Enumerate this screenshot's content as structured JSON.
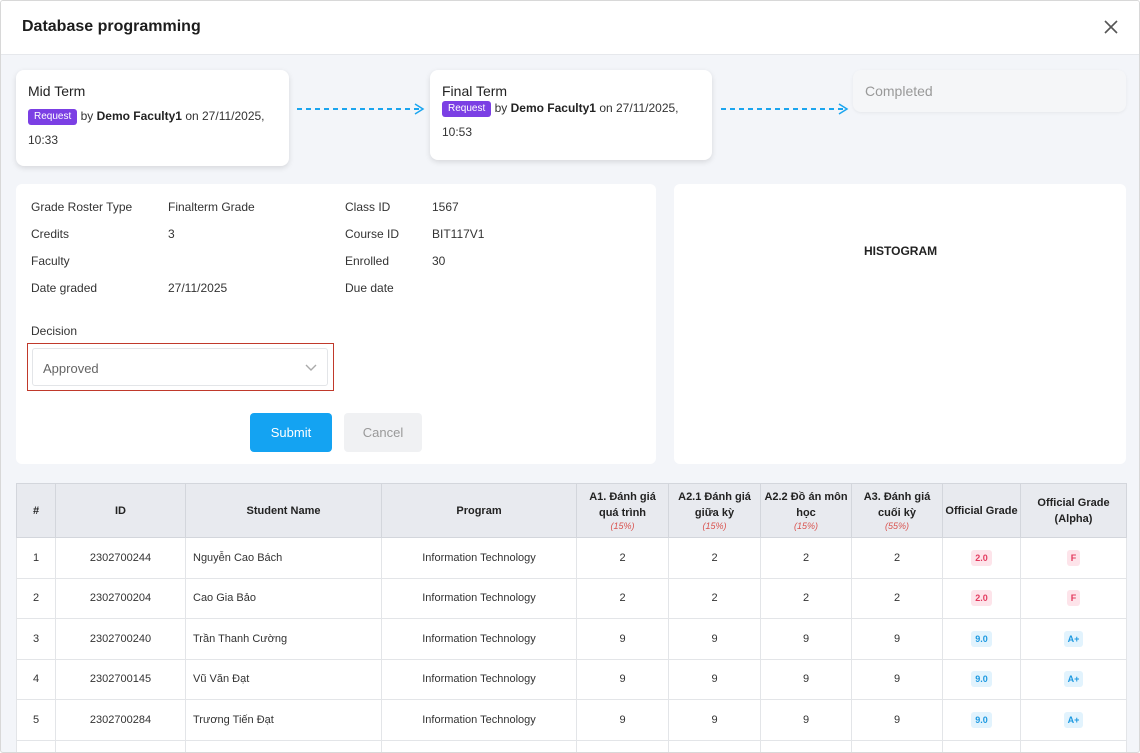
{
  "modal": {
    "title": "Database programming"
  },
  "workflow": {
    "mid": {
      "title": "Mid Term",
      "badge": "Request",
      "by": "by",
      "user": "Demo Faculty1",
      "on": "on 27/11/2025,",
      "time": "10:33"
    },
    "final": {
      "title": "Final Term",
      "badge": "Request",
      "by": "by",
      "user": "Demo Faculty1",
      "on": "on 27/11/2025,",
      "time": "10:53"
    },
    "completed": {
      "title": "Completed"
    }
  },
  "info": {
    "grade_roster_type": {
      "label": "Grade Roster Type",
      "value": "Finalterm Grade"
    },
    "credits": {
      "label": "Credits",
      "value": "3"
    },
    "faculty": {
      "label": "Faculty",
      "value": ""
    },
    "date_graded": {
      "label": "Date graded",
      "value": "27/11/2025"
    },
    "class_id": {
      "label": "Class ID",
      "value": "1567"
    },
    "course_id": {
      "label": "Course ID",
      "value": "BIT117V1"
    },
    "enrolled": {
      "label": "Enrolled",
      "value": "30"
    },
    "due_date": {
      "label": "Due date",
      "value": ""
    }
  },
  "decision": {
    "label": "Decision",
    "value": "Approved"
  },
  "buttons": {
    "submit": "Submit",
    "cancel": "Cancel"
  },
  "histogram": {
    "title": "HISTOGRAM"
  },
  "table": {
    "headers": {
      "num": "#",
      "id": "ID",
      "name": "Student Name",
      "program": "Program",
      "a1": "A1. Đánh giá quá trình",
      "a1_w": "(15%)",
      "a21": "A2.1 Đánh giá giữa kỳ",
      "a21_w": "(15%)",
      "a22": "A2.2 Đồ án môn học",
      "a22_w": "(15%)",
      "a3": "A3. Đánh giá cuối kỳ",
      "a3_w": "(55%)",
      "official": "Official Grade",
      "alpha": "Official Grade (Alpha)"
    },
    "rows": [
      {
        "num": "1",
        "id": "2302700244",
        "name": "Nguyễn Cao Bách",
        "program": "Information Technology",
        "a1": "2",
        "a21": "2",
        "a22": "2",
        "a3": "2",
        "grade": "2.0",
        "alpha": "F"
      },
      {
        "num": "2",
        "id": "2302700204",
        "name": "Cao Gia Bảo",
        "program": "Information Technology",
        "a1": "2",
        "a21": "2",
        "a22": "2",
        "a3": "2",
        "grade": "2.0",
        "alpha": "F"
      },
      {
        "num": "3",
        "id": "2302700240",
        "name": "Trần Thanh Cường",
        "program": "Information Technology",
        "a1": "9",
        "a21": "9",
        "a22": "9",
        "a3": "9",
        "grade": "9.0",
        "alpha": "A+"
      },
      {
        "num": "4",
        "id": "2302700145",
        "name": "Vũ Văn Đạt",
        "program": "Information Technology",
        "a1": "9",
        "a21": "9",
        "a22": "9",
        "a3": "9",
        "grade": "9.0",
        "alpha": "A+"
      },
      {
        "num": "5",
        "id": "2302700284",
        "name": "Trương Tiến Đạt",
        "program": "Information Technology",
        "a1": "9",
        "a21": "9",
        "a22": "9",
        "a3": "9",
        "grade": "9.0",
        "alpha": "A+"
      },
      {
        "num": "",
        "id": "",
        "name": "",
        "program": "",
        "a1": "",
        "a21": "",
        "a22": "",
        "a3": "",
        "grade": "",
        "alpha": ""
      }
    ]
  },
  "colors": {
    "request_badge": "#7b3fe4",
    "submit": "#14a3f2",
    "fail": "#e33b5f",
    "pass": "#1b98e0",
    "decision_highlight": "#c0392b"
  }
}
